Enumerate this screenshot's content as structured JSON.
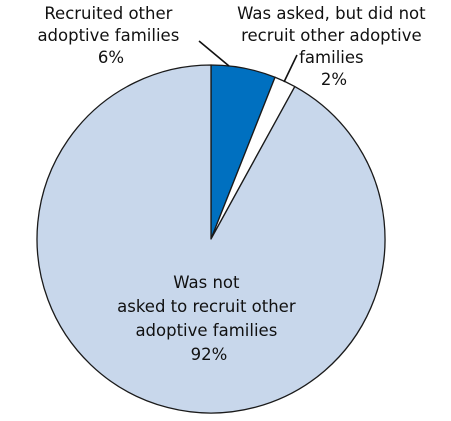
{
  "chart_data": {
    "type": "pie",
    "title": "",
    "slices": [
      {
        "label_lines": [
          "Recruited other",
          "adoptive families"
        ],
        "value": 6,
        "value_text": "6%",
        "color": "#0070c0"
      },
      {
        "label_lines": [
          "Was asked, but did not",
          "recruit other adoptive",
          "families"
        ],
        "value": 2,
        "value_text": "2%",
        "color": "#ffffff"
      },
      {
        "label_lines": [
          "Was not",
          "asked to recruit other",
          "adoptive families"
        ],
        "value": 92,
        "value_text": "92%",
        "color": "#c8d7eb"
      }
    ],
    "start_angle_deg": 0,
    "direction": "clockwise",
    "edge_color": "#1a1a1a"
  }
}
